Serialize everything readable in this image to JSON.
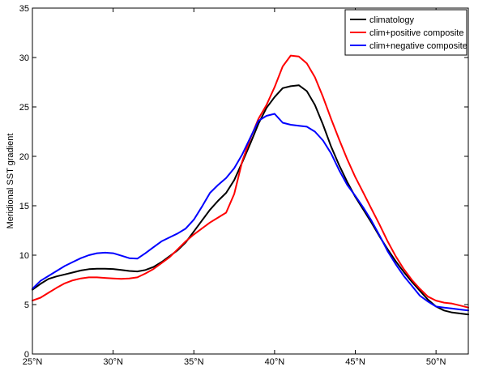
{
  "chart_data": {
    "type": "line",
    "title": "",
    "xlabel": "",
    "ylabel": "Meridional SST gradient",
    "xlim": [
      25,
      52
    ],
    "ylim": [
      0,
      35
    ],
    "grid": false,
    "legend_position": "top-right",
    "x_ticks": [
      {
        "value": 25,
        "label": "25°N"
      },
      {
        "value": 30,
        "label": "30°N"
      },
      {
        "value": 35,
        "label": "35°N"
      },
      {
        "value": 40,
        "label": "40°N"
      },
      {
        "value": 45,
        "label": "45°N"
      },
      {
        "value": 50,
        "label": "50°N"
      }
    ],
    "y_ticks": [
      {
        "value": 0,
        "label": "0"
      },
      {
        "value": 5,
        "label": "5"
      },
      {
        "value": 10,
        "label": "10"
      },
      {
        "value": 15,
        "label": "15"
      },
      {
        "value": 20,
        "label": "20"
      },
      {
        "value": 25,
        "label": "25"
      },
      {
        "value": 30,
        "label": "30"
      },
      {
        "value": 35,
        "label": "35"
      }
    ],
    "x": [
      25,
      25.5,
      26,
      26.5,
      27,
      27.5,
      28,
      28.5,
      29,
      29.5,
      30,
      30.5,
      31,
      31.5,
      32,
      32.5,
      33,
      33.5,
      34,
      34.5,
      35,
      35.5,
      36,
      36.5,
      37,
      37.5,
      38,
      38.5,
      39,
      39.5,
      40,
      40.5,
      41,
      41.5,
      42,
      42.5,
      43,
      43.5,
      44,
      44.5,
      45,
      45.5,
      46,
      46.5,
      47,
      47.5,
      48,
      48.5,
      49,
      49.5,
      50,
      50.5,
      51,
      51.5,
      52
    ],
    "series": [
      {
        "name": "climatology",
        "color": "#000000",
        "values": [
          6.5,
          7.1,
          7.6,
          7.85,
          8.05,
          8.25,
          8.45,
          8.58,
          8.63,
          8.62,
          8.6,
          8.5,
          8.4,
          8.35,
          8.5,
          8.8,
          9.3,
          9.9,
          10.5,
          11.3,
          12.4,
          13.5,
          14.6,
          15.5,
          16.3,
          17.6,
          19.4,
          21.3,
          23.3,
          24.9,
          26.0,
          26.9,
          27.1,
          27.2,
          26.6,
          25.2,
          23.2,
          21.0,
          19.1,
          17.4,
          15.9,
          14.6,
          13.3,
          11.9,
          10.6,
          9.4,
          8.3,
          7.3,
          6.4,
          5.5,
          4.8,
          4.4,
          4.2,
          4.1,
          4.0
        ]
      },
      {
        "name": "clim+positive composite",
        "color": "#ff0000",
        "values": [
          5.4,
          5.7,
          6.2,
          6.7,
          7.15,
          7.45,
          7.65,
          7.75,
          7.75,
          7.7,
          7.65,
          7.6,
          7.65,
          7.75,
          8.15,
          8.6,
          9.2,
          9.8,
          10.6,
          11.4,
          12.1,
          12.7,
          13.3,
          13.8,
          14.3,
          16.2,
          19.5,
          21.8,
          23.8,
          25.2,
          27.0,
          29.1,
          30.2,
          30.1,
          29.4,
          28.0,
          26.0,
          23.8,
          21.7,
          19.7,
          17.9,
          16.3,
          14.7,
          13.1,
          11.4,
          9.9,
          8.6,
          7.5,
          6.6,
          5.8,
          5.4,
          5.2,
          5.1,
          4.9,
          4.7
        ]
      },
      {
        "name": "clim+negative composite",
        "color": "#0000ff",
        "values": [
          6.6,
          7.4,
          7.9,
          8.4,
          8.9,
          9.3,
          9.7,
          10.0,
          10.2,
          10.25,
          10.2,
          9.95,
          9.7,
          9.65,
          10.2,
          10.8,
          11.4,
          11.8,
          12.2,
          12.7,
          13.6,
          14.9,
          16.3,
          17.1,
          17.8,
          18.8,
          20.2,
          21.9,
          23.6,
          24.1,
          24.3,
          23.4,
          23.2,
          23.1,
          23.0,
          22.5,
          21.6,
          20.3,
          18.6,
          17.1,
          16.0,
          14.8,
          13.5,
          12.0,
          10.4,
          9.1,
          7.9,
          6.9,
          5.9,
          5.3,
          4.8,
          4.7,
          4.6,
          4.5,
          4.4
        ]
      }
    ]
  }
}
